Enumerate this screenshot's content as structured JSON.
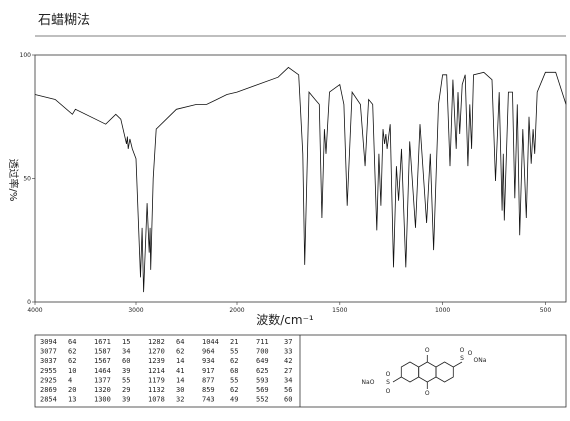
{
  "chart_data": {
    "type": "line",
    "title": "石蜡糊法",
    "x_label": "波数/cm⁻¹",
    "y_label": "透过率/%",
    "xlim": [
      4000,
      400
    ],
    "x_scale_break": 2000,
    "xticks": [
      4000,
      3000,
      2000,
      1500,
      1000,
      500
    ],
    "ylim": [
      0,
      100
    ],
    "yticks": [
      0,
      50,
      100
    ],
    "color": "#111111",
    "x": [
      4000,
      3800,
      3630,
      3600,
      3400,
      3300,
      3200,
      3150,
      3094,
      3085,
      3077,
      3060,
      3037,
      3000,
      2955,
      2940,
      2925,
      2890,
      2869,
      2860,
      2854,
      2830,
      2800,
      2700,
      2600,
      2400,
      2300,
      2200,
      2100,
      2000,
      1900,
      1800,
      1750,
      1700,
      1680,
      1671,
      1650,
      1620,
      1600,
      1587,
      1575,
      1567,
      1550,
      1500,
      1480,
      1464,
      1440,
      1400,
      1377,
      1360,
      1340,
      1320,
      1310,
      1300,
      1290,
      1282,
      1276,
      1270,
      1255,
      1239,
      1225,
      1214,
      1200,
      1179,
      1160,
      1132,
      1110,
      1078,
      1060,
      1044,
      1020,
      1000,
      980,
      964,
      950,
      934,
      925,
      917,
      905,
      890,
      877,
      868,
      859,
      850,
      800,
      760,
      743,
      725,
      711,
      705,
      700,
      680,
      660,
      649,
      637,
      625,
      610,
      593,
      580,
      569,
      560,
      552,
      540,
      500,
      450,
      400
    ],
    "y": [
      84,
      82,
      76,
      78,
      74,
      72,
      76,
      74,
      64,
      67,
      62,
      66,
      62,
      58,
      10,
      30,
      4,
      40,
      20,
      30,
      13,
      50,
      70,
      74,
      78,
      80,
      80,
      82,
      84,
      85,
      88,
      91,
      95,
      92,
      60,
      15,
      85,
      82,
      80,
      34,
      70,
      60,
      85,
      88,
      80,
      39,
      85,
      80,
      55,
      82,
      80,
      29,
      60,
      39,
      70,
      64,
      68,
      62,
      72,
      14,
      55,
      41,
      62,
      14,
      65,
      30,
      72,
      32,
      60,
      21,
      80,
      92,
      92,
      55,
      90,
      62,
      85,
      68,
      88,
      92,
      55,
      80,
      62,
      92,
      93,
      90,
      49,
      85,
      37,
      60,
      33,
      85,
      85,
      42,
      80,
      27,
      70,
      34,
      75,
      56,
      70,
      60,
      85,
      93,
      93,
      80
    ]
  },
  "peak_table": {
    "rows": [
      [
        3094,
        64,
        1671,
        15,
        1282,
        64,
        1044,
        21,
        711,
        37
      ],
      [
        3077,
        62,
        1587,
        34,
        1270,
        62,
        964,
        55,
        700,
        33
      ],
      [
        3037,
        62,
        1567,
        60,
        1239,
        14,
        934,
        62,
        649,
        42
      ],
      [
        2955,
        10,
        1464,
        39,
        1214,
        41,
        917,
        68,
        625,
        27
      ],
      [
        2925,
        4,
        1377,
        55,
        1179,
        14,
        877,
        55,
        593,
        34
      ],
      [
        2869,
        20,
        1320,
        29,
        1132,
        30,
        859,
        62,
        569,
        56
      ],
      [
        2854,
        13,
        1300,
        39,
        1078,
        32,
        743,
        49,
        552,
        60
      ]
    ]
  },
  "structure": {
    "labels": [
      "O",
      "O",
      "S",
      "O",
      "O",
      "ONa",
      "S",
      "O",
      "O",
      "NaO"
    ]
  }
}
